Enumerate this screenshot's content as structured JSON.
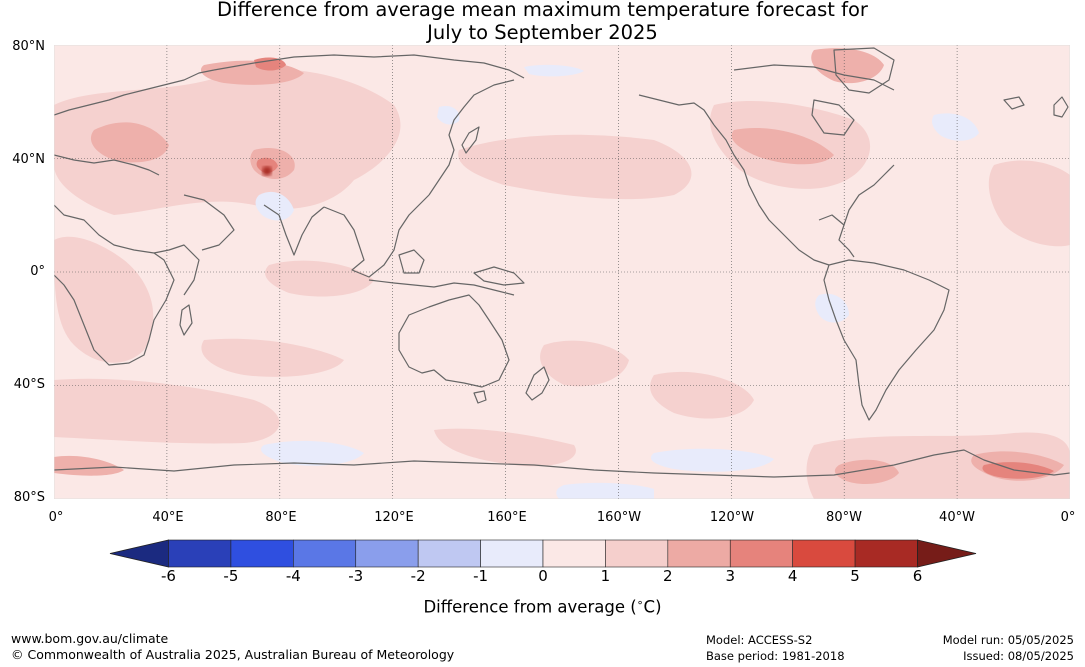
{
  "title_line1": "Difference from average mean maximum temperature forecast for",
  "title_line2": "July to September 2025",
  "lat_labels": [
    "80°N",
    "40°N",
    "0°",
    "40°S",
    "80°S"
  ],
  "lon_labels": [
    "0°",
    "40°E",
    "80°E",
    "120°E",
    "160°E",
    "160°W",
    "120°W",
    "80°W",
    "40°W",
    "0°"
  ],
  "colorbar": {
    "ticks": [
      "-6",
      "-5",
      "-4",
      "-3",
      "-2",
      "-1",
      "0",
      "1",
      "2",
      "3",
      "4",
      "5",
      "6"
    ],
    "colors": [
      "#1b2a80",
      "#2a40b8",
      "#2f4fe0",
      "#5a77e6",
      "#8a9eec",
      "#bfc8f2",
      "#e8ebfb",
      "#fbe8e6",
      "#f5cfcc",
      "#edaaa4",
      "#e6837c",
      "#d94a3e",
      "#a82a24",
      "#761c18"
    ],
    "label": "Difference from average (",
    "label_symbol": "∘",
    "label_unit": "C)"
  },
  "footer": {
    "site": "www.bom.gov.au/climate",
    "copyright": "© Commonwealth of Australia 2025, Australian Bureau of Meteorology",
    "model": "Model: ACCESS-S2",
    "base_period": "Base period: 1981-2018",
    "model_run": "Model run: 05/05/2025",
    "issued": "Issued: 08/05/2025"
  }
}
